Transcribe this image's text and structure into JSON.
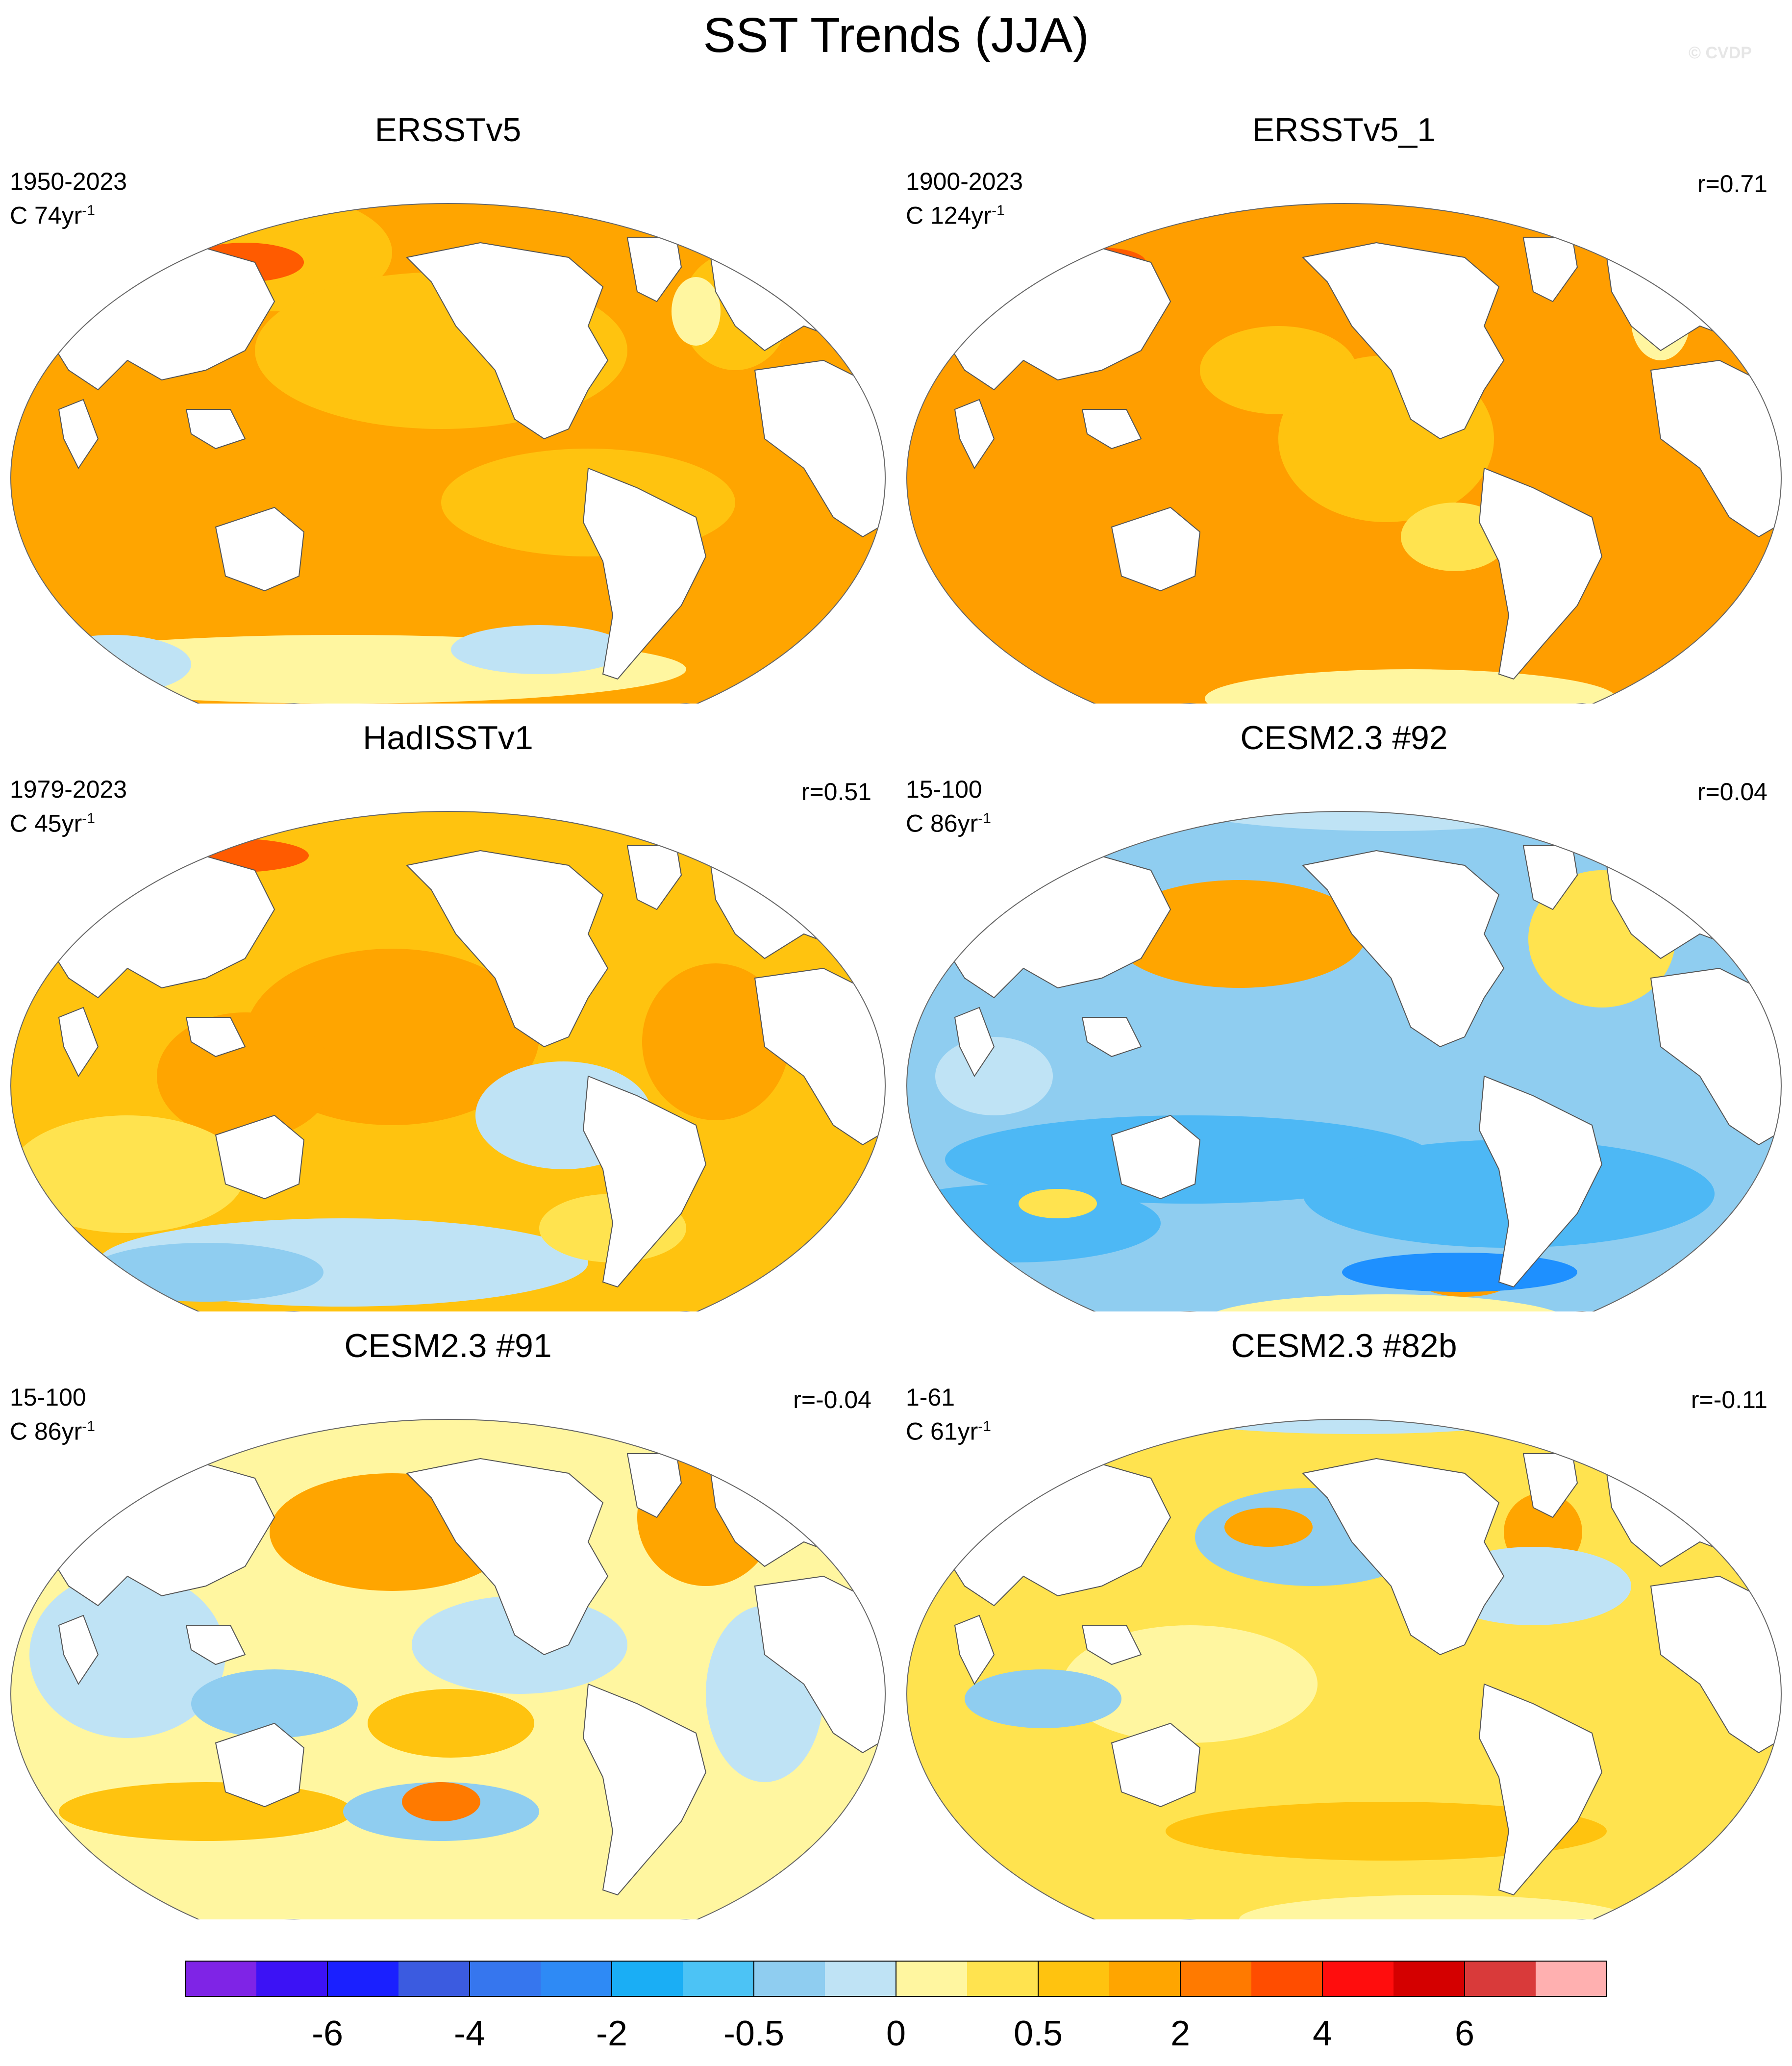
{
  "title": "SST Trends (JJA)",
  "credit": "© CVDP",
  "panels": [
    {
      "name": "ERSSTv5",
      "period": "1950-2023",
      "trend_prefix": "C 74yr",
      "trend_exp": "-1",
      "r": "",
      "base": "#ffa500",
      "land": "#ffffff",
      "blobs": [
        [
          "#ffc30f",
          560,
          320,
          240,
          120
        ],
        [
          "#ffc30f",
          900,
          520,
          380,
          160
        ],
        [
          "#ffc30f",
          1200,
          830,
          300,
          110
        ],
        [
          "#fff6a0",
          700,
          1170,
          700,
          70
        ],
        [
          "#bfe3f5",
          230,
          1160,
          160,
          60
        ],
        [
          "#bfe3f5",
          1100,
          1130,
          180,
          50
        ],
        [
          "#ff5b00",
          500,
          340,
          120,
          40
        ],
        [
          "#ffc30f",
          1500,
          440,
          110,
          120
        ],
        [
          "#fff6a0",
          1420,
          440,
          50,
          70
        ]
      ]
    },
    {
      "name": "ERSSTv5_1",
      "period": "1900-2023",
      "trend_prefix": "C 124yr",
      "trend_exp": "-1",
      "r": "r=0.71",
      "base": "#ff9e00",
      "land": "#ffffff",
      "blobs": [
        [
          "#ffc30f",
          1000,
          700,
          220,
          170
        ],
        [
          "#ffc30f",
          780,
          560,
          160,
          90
        ],
        [
          "#fff6a0",
          1050,
          1230,
          420,
          60
        ],
        [
          "#ffe34f",
          1140,
          900,
          110,
          70
        ],
        [
          "#ff5b00",
          420,
          340,
          90,
          30
        ],
        [
          "#fff6a0",
          1560,
          460,
          60,
          80
        ]
      ]
    },
    {
      "name": "HadISSTv1",
      "period": "1979-2023",
      "trend_prefix": "C 45yr",
      "trend_exp": "-1",
      "r": "r=0.51",
      "base": "#ffc30f",
      "land": "#ffffff",
      "blobs": [
        [
          "#ffa500",
          800,
          680,
          300,
          180
        ],
        [
          "#ffa500",
          500,
          760,
          180,
          130
        ],
        [
          "#ffa500",
          1460,
          690,
          150,
          160
        ],
        [
          "#bfe3f5",
          1150,
          840,
          180,
          110
        ],
        [
          "#bfe3f5",
          700,
          1140,
          500,
          90
        ],
        [
          "#8fcdf0",
          420,
          1160,
          240,
          60
        ],
        [
          "#ffe34f",
          260,
          960,
          240,
          120
        ],
        [
          "#ff5b00",
          470,
          310,
          160,
          35
        ],
        [
          "#ffe34f",
          1250,
          1070,
          150,
          70
        ]
      ]
    },
    {
      "name": "CESM2.3 #92",
      "period": "15-100",
      "trend_prefix": "C 86yr",
      "trend_exp": "-1",
      "r": "r=0.04",
      "base": "#8fcdf0",
      "land": "#ffffff",
      "blobs": [
        [
          "#ffa500",
          700,
          470,
          260,
          110
        ],
        [
          "#ffe34f",
          1440,
          480,
          150,
          140
        ],
        [
          "#4db8f5",
          600,
          930,
          500,
          90
        ],
        [
          "#4db8f5",
          1250,
          1000,
          420,
          110
        ],
        [
          "#4db8f5",
          240,
          1060,
          300,
          80
        ],
        [
          "#bfe3f5",
          1000,
          180,
          500,
          80
        ],
        [
          "#fff6a0",
          1000,
          1265,
          380,
          60
        ],
        [
          "#ffe34f",
          330,
          1020,
          80,
          30
        ],
        [
          "#ff9e00",
          1160,
          1180,
          90,
          30
        ],
        [
          "#1e90ff",
          1150,
          1160,
          240,
          40
        ],
        [
          "#bfe3f5",
          200,
          760,
          120,
          80
        ]
      ]
    },
    {
      "name": "CESM2.3 #91",
      "period": "15-100",
      "trend_prefix": "C 86yr",
      "trend_exp": "-1",
      "r": "r=-0.04",
      "base": "#fff6a0",
      "land": "#ffffff",
      "blobs": [
        [
          "#ffa500",
          800,
          450,
          250,
          120
        ],
        [
          "#ffa500",
          1440,
          420,
          140,
          140
        ],
        [
          "#bfe3f5",
          260,
          700,
          200,
          170
        ],
        [
          "#bfe3f5",
          1060,
          680,
          220,
          100
        ],
        [
          "#8fcdf0",
          560,
          800,
          170,
          70
        ],
        [
          "#ffc30f",
          920,
          840,
          170,
          70
        ],
        [
          "#bfe3f5",
          1560,
          780,
          120,
          180
        ],
        [
          "#ffc30f",
          420,
          1020,
          300,
          60
        ],
        [
          "#8fcdf0",
          900,
          1020,
          200,
          60
        ],
        [
          "#ff7a00",
          900,
          1000,
          80,
          40
        ]
      ]
    },
    {
      "name": "CESM2.3 #82b",
      "period": "1-61",
      "trend_prefix": "C 61yr",
      "trend_exp": "-1",
      "r": "r=-0.11",
      "base": "#ffe34f",
      "land": "#ffffff",
      "blobs": [
        [
          "#8fcdf0",
          850,
          460,
          240,
          100
        ],
        [
          "#ffa500",
          760,
          440,
          90,
          40
        ],
        [
          "#bfe3f5",
          940,
          180,
          500,
          70
        ],
        [
          "#ffa500",
          1320,
          450,
          80,
          80
        ],
        [
          "#bfe3f5",
          1300,
          560,
          200,
          80
        ],
        [
          "#fff6a0",
          600,
          760,
          260,
          120
        ],
        [
          "#8fcdf0",
          300,
          790,
          160,
          60
        ],
        [
          "#ffc30f",
          1000,
          1060,
          450,
          60
        ],
        [
          "#fff6a0",
          1100,
          1240,
          400,
          50
        ]
      ]
    }
  ],
  "colorbar": {
    "colors": [
      "#7f24e6",
      "#3c12f5",
      "#1a20ff",
      "#3b5be0",
      "#3676ee",
      "#2e8af5",
      "#1aaef5",
      "#4cc3f5",
      "#8fcdf0",
      "#bfe3f5",
      "#fff6a0",
      "#ffe34f",
      "#ffc30f",
      "#ffa500",
      "#ff7a00",
      "#ff4d00",
      "#ff0d0d",
      "#d40000",
      "#d93a3a",
      "#ffb0b0"
    ],
    "labels": [
      "-6",
      "-4",
      "-2",
      "-0.5",
      "0",
      "0.5",
      "2",
      "4",
      "6"
    ]
  }
}
